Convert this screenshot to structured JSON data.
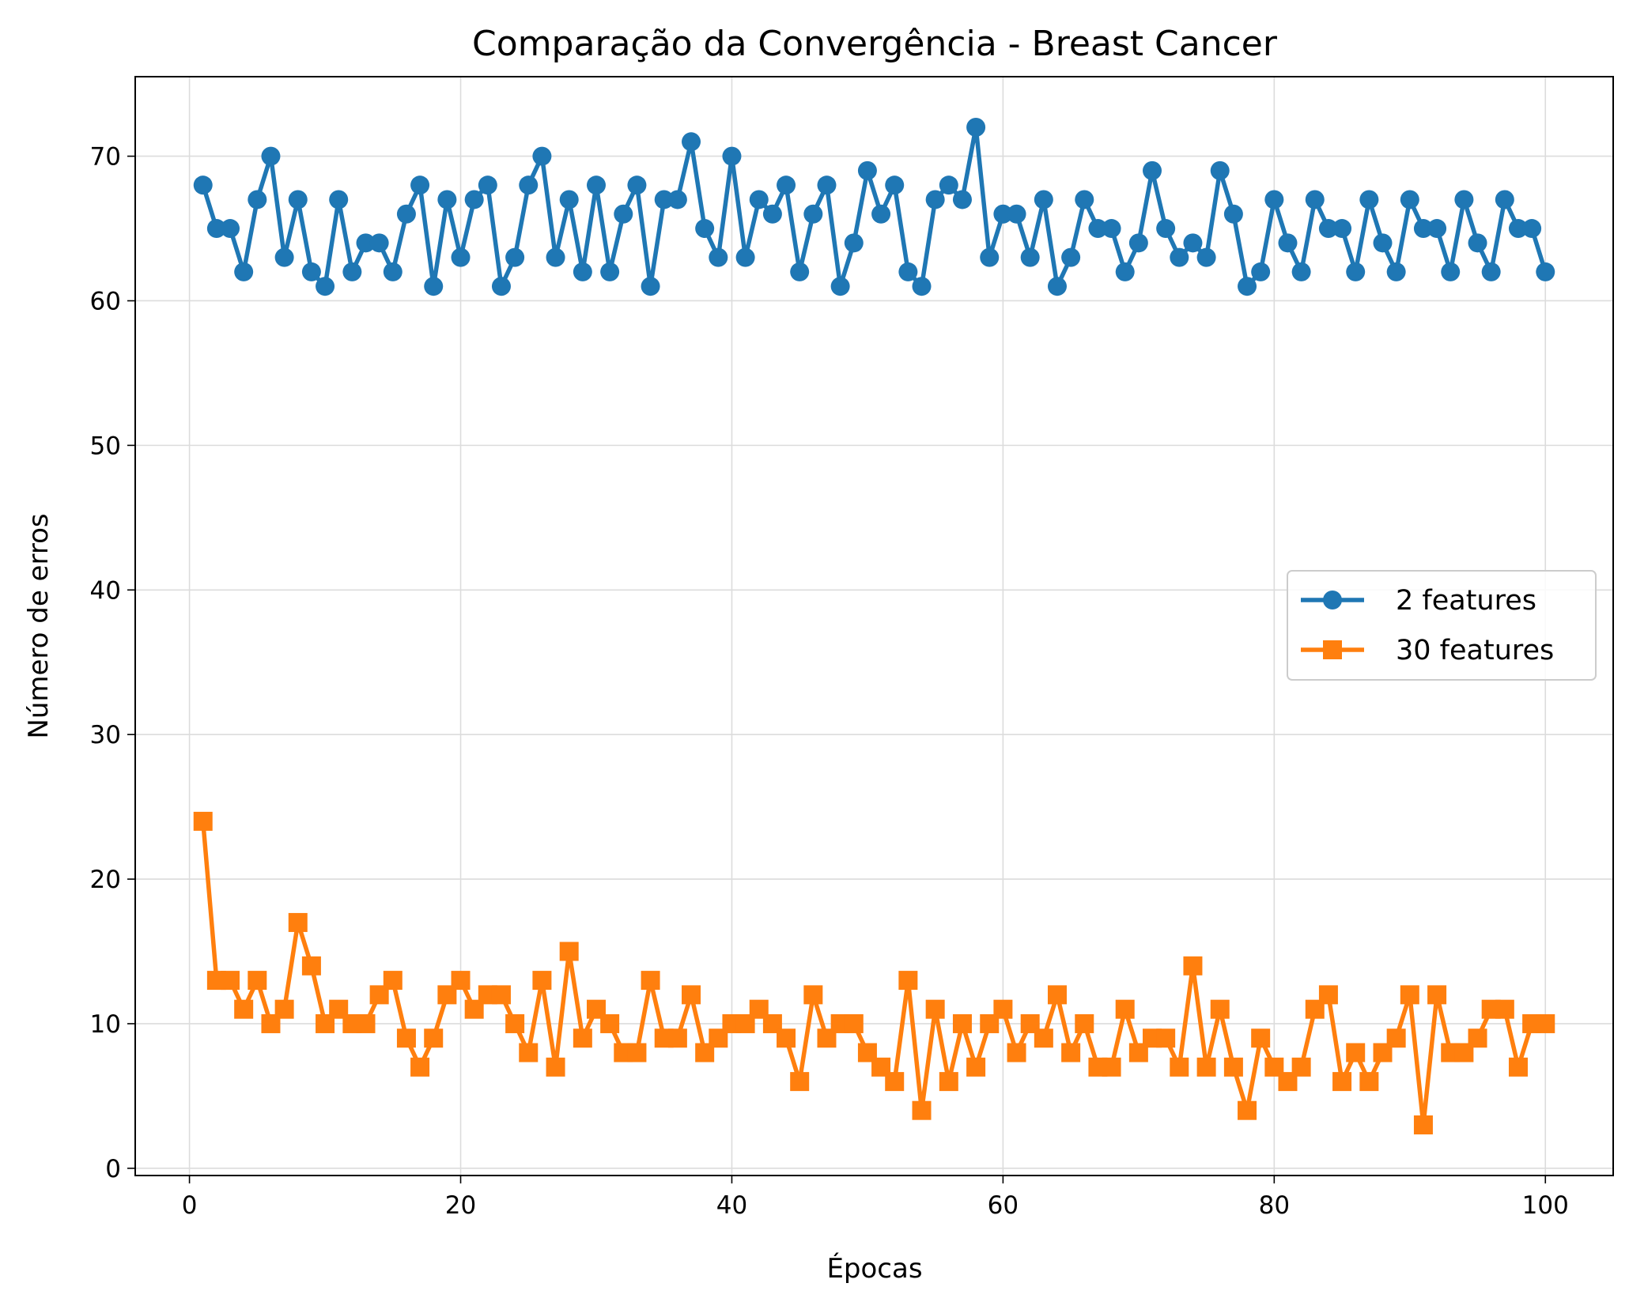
{
  "chart_data": {
    "type": "line",
    "title": "Comparação da Convergência - Breast Cancer",
    "xlabel": "Épocas",
    "ylabel": "Número de erros",
    "xlim": [
      -4,
      105
    ],
    "ylim": [
      -0.5,
      75.5
    ],
    "xticks": [
      0,
      20,
      40,
      60,
      80,
      100
    ],
    "yticks": [
      0,
      10,
      20,
      30,
      40,
      50,
      60,
      70
    ],
    "grid": true,
    "legend_position": "center-right",
    "x": [
      1,
      2,
      3,
      4,
      5,
      6,
      7,
      8,
      9,
      10,
      11,
      12,
      13,
      14,
      15,
      16,
      17,
      18,
      19,
      20,
      21,
      22,
      23,
      24,
      25,
      26,
      27,
      28,
      29,
      30,
      31,
      32,
      33,
      34,
      35,
      36,
      37,
      38,
      39,
      40,
      41,
      42,
      43,
      44,
      45,
      46,
      47,
      48,
      49,
      50,
      51,
      52,
      53,
      54,
      55,
      56,
      57,
      58,
      59,
      60,
      61,
      62,
      63,
      64,
      65,
      66,
      67,
      68,
      69,
      70,
      71,
      72,
      73,
      74,
      75,
      76,
      77,
      78,
      79,
      80,
      81,
      82,
      83,
      84,
      85,
      86,
      87,
      88,
      89,
      90,
      91,
      92,
      93,
      94,
      95,
      96,
      97,
      98,
      99,
      100
    ],
    "series": [
      {
        "name": "2 features",
        "color": "#1f77b4",
        "marker": "circle",
        "values": [
          68,
          65,
          65,
          62,
          67,
          70,
          63,
          67,
          62,
          61,
          67,
          62,
          64,
          64,
          62,
          66,
          68,
          61,
          67,
          63,
          67,
          68,
          61,
          63,
          68,
          70,
          63,
          67,
          62,
          68,
          62,
          66,
          68,
          61,
          67,
          67,
          71,
          65,
          63,
          70,
          63,
          67,
          66,
          68,
          62,
          66,
          68,
          61,
          64,
          69,
          66,
          68,
          62,
          61,
          67,
          68,
          67,
          72,
          63,
          66,
          66,
          63,
          67,
          61,
          63,
          67,
          65,
          65,
          62,
          64,
          69,
          65,
          63,
          64,
          63,
          69,
          66,
          61,
          62,
          67,
          64,
          62,
          67,
          65,
          65,
          62,
          67,
          64,
          62,
          67,
          65,
          65,
          62,
          67,
          64,
          62,
          67,
          65,
          65,
          62
        ]
      },
      {
        "name": "30 features",
        "color": "#ff7f0e",
        "marker": "square",
        "values": [
          24,
          13,
          13,
          11,
          13,
          10,
          11,
          17,
          14,
          10,
          11,
          10,
          10,
          12,
          13,
          9,
          7,
          9,
          12,
          13,
          11,
          12,
          12,
          10,
          8,
          13,
          7,
          15,
          9,
          11,
          10,
          8,
          8,
          13,
          9,
          9,
          12,
          8,
          9,
          10,
          10,
          11,
          10,
          9,
          6,
          12,
          9,
          10,
          10,
          8,
          7,
          6,
          13,
          4,
          11,
          6,
          10,
          7,
          10,
          11,
          8,
          10,
          9,
          12,
          8,
          10,
          7,
          7,
          11,
          8,
          9,
          9,
          7,
          14,
          7,
          11,
          7,
          4,
          9,
          7,
          6,
          7,
          11,
          12,
          6,
          8,
          6,
          8,
          9,
          12,
          3,
          12,
          8,
          8,
          9,
          11,
          11,
          7,
          10,
          10
        ]
      }
    ]
  }
}
